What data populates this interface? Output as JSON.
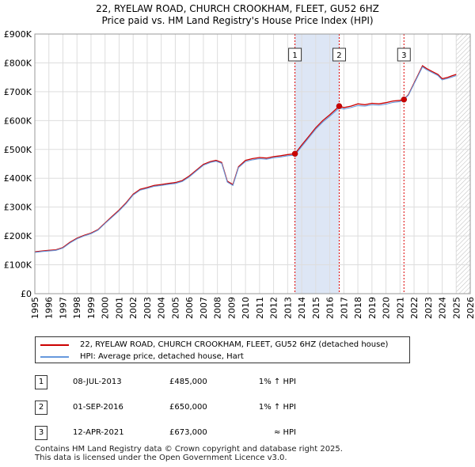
{
  "title_line1": "22, RYELAW ROAD, CHURCH CROOKHAM, FLEET, GU52 6HZ",
  "title_line2": "Price paid vs. HM Land Registry's House Price Index (HPI)",
  "chart_data": {
    "type": "line",
    "ylim": [
      0,
      900000
    ],
    "xlim": [
      1995,
      2026
    ],
    "y_ticks": [
      {
        "value": 0,
        "label": "£0"
      },
      {
        "value": 100000,
        "label": "£100K"
      },
      {
        "value": 200000,
        "label": "£200K"
      },
      {
        "value": 300000,
        "label": "£300K"
      },
      {
        "value": 400000,
        "label": "£400K"
      },
      {
        "value": 500000,
        "label": "£500K"
      },
      {
        "value": 600000,
        "label": "£600K"
      },
      {
        "value": 700000,
        "label": "£700K"
      },
      {
        "value": 800000,
        "label": "£800K"
      },
      {
        "value": 900000,
        "label": "£900K"
      }
    ],
    "x_ticks": [
      "1995",
      "1996",
      "1997",
      "1998",
      "1999",
      "2000",
      "2001",
      "2002",
      "2003",
      "2004",
      "2005",
      "2006",
      "2007",
      "2008",
      "2009",
      "2010",
      "2011",
      "2012",
      "2013",
      "2014",
      "2015",
      "2016",
      "2017",
      "2018",
      "2019",
      "2020",
      "2021",
      "2022",
      "2023",
      "2024",
      "2025",
      "2026"
    ],
    "grid": true,
    "shaded_periods": [
      [
        2013.52,
        2016.67
      ],
      [
        2021.28,
        2021.28
      ]
    ],
    "hatched_after": 2025.0,
    "colors": {
      "property": "#cc0000",
      "hpi": "#6699dd",
      "sale_line": "#dd0000",
      "shade": "#dde6f5",
      "grid": "#dddddd"
    },
    "series": [
      {
        "name": "22, RYELAW ROAD, CHURCH CROOKHAM, FLEET, GU52 6HZ (detached house)",
        "color": "#cc0000",
        "x": [
          1995.0,
          1995.5,
          1996.0,
          1996.5,
          1997.0,
          1997.5,
          1998.0,
          1998.5,
          1999.0,
          1999.5,
          2000.0,
          2000.5,
          2001.0,
          2001.5,
          2002.0,
          2002.5,
          2003.0,
          2003.5,
          2004.0,
          2004.5,
          2005.0,
          2005.5,
          2006.0,
          2006.5,
          2007.0,
          2007.5,
          2007.9,
          2008.3,
          2008.7,
          2009.1,
          2009.5,
          2010.0,
          2010.5,
          2011.0,
          2011.5,
          2012.0,
          2012.5,
          2013.0,
          2013.52,
          2014.0,
          2014.5,
          2015.0,
          2015.5,
          2016.0,
          2016.67,
          2017.0,
          2017.5,
          2018.0,
          2018.5,
          2019.0,
          2019.5,
          2020.0,
          2020.5,
          2021.0,
          2021.28,
          2021.6,
          2022.0,
          2022.3,
          2022.6,
          2022.9,
          2023.3,
          2023.7,
          2024.0,
          2024.4,
          2024.7,
          2025.0
        ],
        "values": [
          145000,
          148000,
          150000,
          152000,
          160000,
          178000,
          192000,
          202000,
          210000,
          222000,
          245000,
          268000,
          290000,
          315000,
          345000,
          362000,
          368000,
          375000,
          378000,
          382000,
          385000,
          392000,
          408000,
          428000,
          448000,
          458000,
          462000,
          455000,
          390000,
          378000,
          440000,
          462000,
          468000,
          472000,
          470000,
          475000,
          478000,
          482000,
          485000,
          515000,
          545000,
          575000,
          600000,
          620000,
          650000,
          645000,
          650000,
          658000,
          655000,
          660000,
          658000,
          662000,
          668000,
          670000,
          673000,
          690000,
          730000,
          760000,
          790000,
          780000,
          770000,
          760000,
          745000,
          750000,
          755000,
          760000
        ]
      },
      {
        "name": "HPI: Average price, detached house, Hart",
        "color": "#6699dd",
        "x": [
          1995.0,
          1995.5,
          1996.0,
          1996.5,
          1997.0,
          1997.5,
          1998.0,
          1998.5,
          1999.0,
          1999.5,
          2000.0,
          2000.5,
          2001.0,
          2001.5,
          2002.0,
          2002.5,
          2003.0,
          2003.5,
          2004.0,
          2004.5,
          2005.0,
          2005.5,
          2006.0,
          2006.5,
          2007.0,
          2007.5,
          2007.9,
          2008.3,
          2008.7,
          2009.1,
          2009.5,
          2010.0,
          2010.5,
          2011.0,
          2011.5,
          2012.0,
          2012.5,
          2013.0,
          2013.52,
          2014.0,
          2014.5,
          2015.0,
          2015.5,
          2016.0,
          2016.67,
          2017.0,
          2017.5,
          2018.0,
          2018.5,
          2019.0,
          2019.5,
          2020.0,
          2020.5,
          2021.0,
          2021.28,
          2021.6,
          2022.0,
          2022.3,
          2022.6,
          2022.9,
          2023.3,
          2023.7,
          2024.0,
          2024.4,
          2024.7,
          2025.0
        ],
        "values": [
          143000,
          146000,
          148000,
          150000,
          158000,
          176000,
          190000,
          200000,
          208000,
          220000,
          243000,
          265000,
          287000,
          312000,
          342000,
          359000,
          365000,
          372000,
          375000,
          379000,
          382000,
          389000,
          405000,
          425000,
          445000,
          455000,
          459000,
          452000,
          387000,
          375000,
          437000,
          458000,
          464000,
          468000,
          466000,
          471000,
          474000,
          478000,
          480000,
          510000,
          540000,
          570000,
          595000,
          615000,
          644000,
          640000,
          645000,
          652000,
          650000,
          655000,
          653000,
          657000,
          663000,
          666000,
          673000,
          688000,
          727000,
          757000,
          786000,
          776000,
          766000,
          756000,
          741000,
          746000,
          751000,
          756000
        ]
      }
    ],
    "sales": [
      {
        "num": "1",
        "x": 2013.52,
        "price": 485000
      },
      {
        "num": "2",
        "x": 2016.67,
        "price": 650000
      },
      {
        "num": "3",
        "x": 2021.28,
        "price": 673000
      }
    ]
  },
  "legend": {
    "property_label": "22, RYELAW ROAD, CHURCH CROOKHAM, FLEET, GU52 6HZ (detached house)",
    "hpi_label": "HPI: Average price, detached house, Hart"
  },
  "sales_table": [
    {
      "num": "1",
      "date": "08-JUL-2013",
      "price": "£485,000",
      "hpi": "1% ↑ HPI"
    },
    {
      "num": "2",
      "date": "01-SEP-2016",
      "price": "£650,000",
      "hpi": "1% ↑ HPI"
    },
    {
      "num": "3",
      "date": "12-APR-2021",
      "price": "£673,000",
      "hpi": "≈ HPI"
    }
  ],
  "footer_line1": "Contains HM Land Registry data © Crown copyright and database right 2025.",
  "footer_line2": "This data is licensed under the Open Government Licence v3.0."
}
